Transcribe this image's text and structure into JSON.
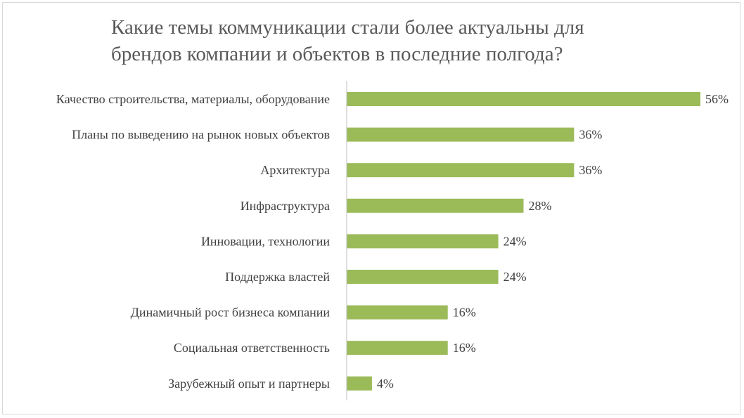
{
  "chart_data": {
    "type": "bar",
    "orientation": "horizontal",
    "title": "Какие темы коммуникации стали более актуальны для\nбрендов компании и объектов в последние полгода?",
    "categories": [
      "Качество строительства, материалы, оборудование",
      "Планы по выведению на рынок новых объектов",
      "Архитектура",
      "Инфраструктура",
      "Инновации, технологии",
      "Поддержка властей",
      "Динамичный рост бизнеса компании",
      "Социальная ответственность",
      "Зарубежный опыт и партнеры"
    ],
    "values": [
      56,
      36,
      36,
      28,
      24,
      24,
      16,
      16,
      4
    ],
    "data_labels": [
      "56%",
      "36%",
      "36%",
      "28%",
      "24%",
      "24%",
      "16%",
      "16%",
      "4%"
    ],
    "value_unit": "%",
    "xlim": [
      0,
      56
    ],
    "grid": false,
    "legend": "none",
    "bar_color": "#9bbb59",
    "axis_color": "#bfbfbf"
  }
}
